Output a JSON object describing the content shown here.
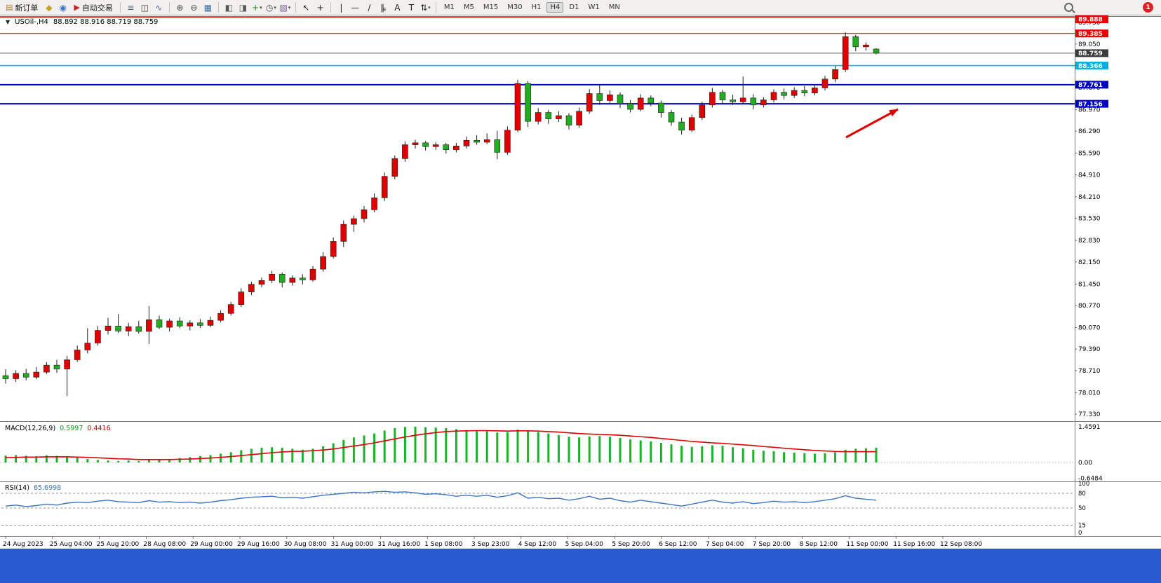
{
  "toolbar": {
    "timeframes": [
      "M1",
      "M5",
      "M15",
      "M30",
      "H1",
      "H4",
      "D1",
      "W1",
      "MN"
    ],
    "active_timeframe": "H4",
    "badge_count": "1",
    "items": [
      {
        "k": "btn",
        "n": "new-order-button",
        "g": "▤",
        "gc": "#b08030",
        "l": "新订单"
      },
      {
        "k": "ico",
        "n": "history-center-icon",
        "g": "◆",
        "gc": "#c8a020"
      },
      {
        "k": "ico",
        "n": "community-icon",
        "g": "◉",
        "gc": "#3c78c8"
      },
      {
        "k": "btn",
        "n": "auto-trading-button",
        "g": "▶",
        "gc": "#cc2222",
        "l": "自动交易"
      },
      {
        "k": "sep"
      },
      {
        "k": "ico",
        "n": "bar-chart-icon",
        "g": "≡",
        "gc": "#44619a"
      },
      {
        "k": "ico",
        "n": "candlestick-chart-icon",
        "g": "◫",
        "gc": "#444"
      },
      {
        "k": "ico",
        "n": "line-chart-icon",
        "g": "∿",
        "gc": "#44619a"
      },
      {
        "k": "sep"
      },
      {
        "k": "ico",
        "n": "zoom-in-icon",
        "g": "⊕",
        "gc": "#444"
      },
      {
        "k": "ico",
        "n": "zoom-out-icon",
        "g": "⊖",
        "gc": "#444"
      },
      {
        "k": "ico",
        "n": "tile-windows-icon",
        "g": "▦",
        "gc": "#3a6ea5"
      },
      {
        "k": "sep"
      },
      {
        "k": "ico",
        "n": "cascade-windows-icon",
        "g": "◧",
        "gc": "#555"
      },
      {
        "k": "ico",
        "n": "arrange-windows-icon",
        "g": "◨",
        "gc": "#555"
      },
      {
        "k": "ico",
        "n": "add-indicator-icon",
        "g": "+",
        "gc": "#1a8a1a",
        "caret": true
      },
      {
        "k": "ico",
        "n": "periods-icon",
        "g": "◷",
        "gc": "#444",
        "caret": true
      },
      {
        "k": "ico",
        "n": "templates-icon",
        "g": "▨",
        "gc": "#7a5a9a",
        "caret": true
      },
      {
        "k": "sep"
      },
      {
        "k": "ico",
        "n": "cursor-icon",
        "g": "↖",
        "gc": "#222"
      },
      {
        "k": "ico",
        "n": "crosshair-icon",
        "g": "+",
        "gc": "#222"
      },
      {
        "k": "sep"
      },
      {
        "k": "ico",
        "n": "vertical-line-icon",
        "g": "|",
        "gc": "#222"
      },
      {
        "k": "ico",
        "n": "horizontal-line-icon",
        "g": "—",
        "gc": "#222"
      },
      {
        "k": "ico",
        "n": "trendline-icon",
        "g": "/",
        "gc": "#222"
      },
      {
        "k": "ico",
        "n": "equidistant-channel-icon",
        "g": "∥",
        "gc": "#222",
        "sub": "E"
      },
      {
        "k": "ico",
        "n": "text-icon",
        "g": "A",
        "gc": "#222"
      },
      {
        "k": "ico",
        "n": "text-label-icon",
        "g": "T",
        "gc": "#222"
      },
      {
        "k": "ico",
        "n": "arrows-icon",
        "g": "⇅",
        "gc": "#222",
        "caret": true
      },
      {
        "k": "sep"
      },
      {
        "k": "tf"
      },
      {
        "k": "search",
        "n": "search-icon"
      },
      {
        "k": "badge",
        "n": "notification-badge"
      }
    ]
  },
  "chart": {
    "symbol_label": "USOil-,H4",
    "ohlc": "88.892 88.916 88.719 88.759",
    "colors": {
      "up": "#e00000",
      "down": "#22ac22",
      "wick": "#1c1c1c"
    },
    "price_axis_ticks": [
      "89.730",
      "89.050",
      "88.370",
      "87.670",
      "86.970",
      "86.290",
      "85.590",
      "84.910",
      "84.210",
      "83.530",
      "82.830",
      "82.150",
      "81.450",
      "80.770",
      "80.070",
      "79.390",
      "78.710",
      "78.010",
      "77.330"
    ],
    "badges": [
      {
        "label": "89.888",
        "color": "#ee0000"
      },
      {
        "label": "89.385",
        "color": "#ee0000"
      },
      {
        "label": "88.759",
        "color": "#3c3c3c"
      },
      {
        "label": "88.366",
        "color": "#00b0e0"
      },
      {
        "label": "87.761",
        "color": "#0000c8"
      },
      {
        "label": "87.156",
        "color": "#0000c8"
      }
    ],
    "levels": [
      {
        "price": 89.888,
        "color": "#ee0000",
        "w": 1.2
      },
      {
        "price": 89.385,
        "color": "#ee0000",
        "w": 1.2
      },
      {
        "price": 88.759,
        "color": "#606060",
        "w": 1
      },
      {
        "price": 88.366,
        "color": "#00c0f0",
        "w": 1.6
      },
      {
        "price": 87.761,
        "color": "#0000cc",
        "w": 2
      },
      {
        "price": 87.156,
        "color": "#0000cc",
        "w": 2
      }
    ],
    "time_axis": [
      "24 Aug 2023",
      "25 Aug 04:00",
      "25 Aug 20:00",
      "28 Aug 08:00",
      "29 Aug 00:00",
      "29 Aug 16:00",
      "30 Aug 08:00",
      "31 Aug 00:00",
      "31 Aug 16:00",
      "1 Sep 08:00",
      "3 Sep 23:00",
      "4 Sep 12:00",
      "5 Sep 04:00",
      "5 Sep 20:00",
      "6 Sep 12:00",
      "7 Sep 04:00",
      "7 Sep 20:00",
      "8 Sep 12:00",
      "11 Sep 00:00",
      "11 Sep 16:00",
      "12 Sep 08:00"
    ],
    "candles": [
      [
        78.55,
        78.75,
        78.3,
        78.45
      ],
      [
        78.45,
        78.72,
        78.35,
        78.62
      ],
      [
        78.62,
        78.76,
        78.4,
        78.5
      ],
      [
        78.5,
        78.82,
        78.44,
        78.66
      ],
      [
        78.66,
        78.98,
        78.6,
        78.88
      ],
      [
        78.88,
        79.05,
        78.64,
        78.76
      ],
      [
        78.76,
        79.18,
        77.9,
        79.05
      ],
      [
        79.05,
        79.5,
        78.98,
        79.36
      ],
      [
        79.36,
        80.05,
        79.25,
        79.58
      ],
      [
        79.58,
        80.12,
        79.5,
        79.98
      ],
      [
        79.98,
        80.38,
        79.85,
        80.12
      ],
      [
        80.12,
        80.5,
        79.9,
        79.96
      ],
      [
        79.96,
        80.22,
        79.8,
        80.1
      ],
      [
        80.1,
        80.28,
        79.88,
        79.95
      ],
      [
        79.95,
        80.75,
        79.55,
        80.32
      ],
      [
        80.32,
        80.45,
        80.02,
        80.08
      ],
      [
        80.08,
        80.35,
        79.95,
        80.28
      ],
      [
        80.28,
        80.4,
        80.05,
        80.12
      ],
      [
        80.12,
        80.3,
        79.98,
        80.22
      ],
      [
        80.22,
        80.34,
        80.06,
        80.14
      ],
      [
        80.14,
        80.42,
        80.08,
        80.3
      ],
      [
        80.3,
        80.62,
        80.24,
        80.52
      ],
      [
        80.52,
        80.88,
        80.45,
        80.8
      ],
      [
        80.8,
        81.32,
        80.72,
        81.2
      ],
      [
        81.2,
        81.52,
        81.1,
        81.44
      ],
      [
        81.44,
        81.66,
        81.35,
        81.56
      ],
      [
        81.56,
        81.86,
        81.48,
        81.76
      ],
      [
        81.76,
        81.82,
        81.34,
        81.5
      ],
      [
        81.5,
        81.72,
        81.4,
        81.64
      ],
      [
        81.64,
        81.76,
        81.44,
        81.58
      ],
      [
        81.58,
        82.02,
        81.52,
        81.92
      ],
      [
        81.92,
        82.46,
        81.84,
        82.32
      ],
      [
        82.32,
        82.92,
        82.26,
        82.8
      ],
      [
        82.8,
        83.46,
        82.62,
        83.34
      ],
      [
        83.34,
        83.62,
        83.1,
        83.52
      ],
      [
        83.52,
        83.92,
        83.4,
        83.8
      ],
      [
        83.8,
        84.32,
        83.72,
        84.18
      ],
      [
        84.18,
        84.98,
        84.08,
        84.86
      ],
      [
        84.86,
        85.52,
        84.76,
        85.42
      ],
      [
        85.42,
        85.96,
        85.32,
        85.86
      ],
      [
        85.86,
        86.02,
        85.74,
        85.92
      ],
      [
        85.92,
        85.98,
        85.68,
        85.8
      ],
      [
        85.8,
        85.94,
        85.7,
        85.86
      ],
      [
        85.86,
        85.92,
        85.58,
        85.7
      ],
      [
        85.7,
        85.92,
        85.62,
        85.82
      ],
      [
        85.82,
        86.12,
        85.74,
        86.0
      ],
      [
        86.0,
        86.16,
        85.86,
        85.94
      ],
      [
        85.94,
        86.22,
        85.88,
        86.02
      ],
      [
        86.02,
        86.3,
        85.4,
        85.62
      ],
      [
        85.62,
        86.44,
        85.54,
        86.32
      ],
      [
        86.32,
        87.92,
        86.26,
        87.8
      ],
      [
        87.8,
        87.88,
        86.42,
        86.6
      ],
      [
        86.6,
        87.02,
        86.5,
        86.88
      ],
      [
        86.88,
        86.96,
        86.52,
        86.68
      ],
      [
        86.68,
        86.92,
        86.58,
        86.78
      ],
      [
        86.78,
        86.86,
        86.34,
        86.48
      ],
      [
        86.48,
        87.04,
        86.4,
        86.92
      ],
      [
        86.92,
        87.62,
        86.84,
        87.48
      ],
      [
        87.48,
        87.78,
        87.12,
        87.26
      ],
      [
        87.26,
        87.58,
        87.18,
        87.44
      ],
      [
        87.44,
        87.52,
        87.02,
        87.16
      ],
      [
        87.16,
        87.28,
        86.88,
        86.98
      ],
      [
        86.98,
        87.46,
        86.92,
        87.34
      ],
      [
        87.34,
        87.42,
        87.08,
        87.18
      ],
      [
        87.18,
        87.26,
        86.72,
        86.88
      ],
      [
        86.88,
        86.96,
        86.46,
        86.58
      ],
      [
        86.58,
        86.72,
        86.18,
        86.32
      ],
      [
        86.32,
        86.82,
        86.26,
        86.72
      ],
      [
        86.72,
        87.22,
        86.64,
        87.12
      ],
      [
        87.12,
        87.66,
        87.04,
        87.52
      ],
      [
        87.52,
        87.6,
        87.16,
        87.28
      ],
      [
        87.28,
        87.44,
        87.12,
        87.22
      ],
      [
        87.22,
        88.02,
        87.14,
        87.34
      ],
      [
        87.34,
        87.46,
        86.98,
        87.12
      ],
      [
        87.12,
        87.36,
        87.04,
        87.28
      ],
      [
        87.28,
        87.62,
        87.2,
        87.52
      ],
      [
        87.52,
        87.64,
        87.3,
        87.42
      ],
      [
        87.42,
        87.68,
        87.34,
        87.58
      ],
      [
        87.58,
        87.72,
        87.4,
        87.5
      ],
      [
        87.5,
        87.74,
        87.42,
        87.66
      ],
      [
        87.66,
        88.04,
        87.58,
        87.94
      ],
      [
        87.94,
        88.36,
        87.84,
        88.24
      ],
      [
        88.24,
        89.42,
        88.16,
        89.28
      ],
      [
        89.28,
        89.34,
        88.82,
        88.96
      ],
      [
        88.96,
        89.1,
        88.84,
        89.02
      ],
      [
        88.89,
        88.92,
        88.72,
        88.76
      ]
    ]
  },
  "macd": {
    "label": "MACD(12,26,9)",
    "value_main": "0.5997",
    "value_signal": "0.4416",
    "axis": [
      "1.4591",
      "0.00",
      "-0.6484"
    ],
    "hist_color": "#18b428",
    "signal_color": "#e00000",
    "hist": [
      0.28,
      0.3,
      0.27,
      0.25,
      0.29,
      0.27,
      0.24,
      0.2,
      0.14,
      0.1,
      0.08,
      0.06,
      0.08,
      0.06,
      0.12,
      0.1,
      0.14,
      0.18,
      0.22,
      0.26,
      0.3,
      0.36,
      0.42,
      0.5,
      0.56,
      0.6,
      0.62,
      0.6,
      0.56,
      0.52,
      0.56,
      0.66,
      0.78,
      0.92,
      1.02,
      1.1,
      1.18,
      1.3,
      1.4,
      1.45,
      1.46,
      1.44,
      1.42,
      1.4,
      1.36,
      1.32,
      1.3,
      1.28,
      1.22,
      1.24,
      1.34,
      1.3,
      1.24,
      1.18,
      1.12,
      1.05,
      1.02,
      1.06,
      1.08,
      1.05,
      1.0,
      0.94,
      0.9,
      0.86,
      0.8,
      0.74,
      0.68,
      0.64,
      0.66,
      0.7,
      0.68,
      0.62,
      0.58,
      0.52,
      0.48,
      0.46,
      0.42,
      0.4,
      0.38,
      0.36,
      0.38,
      0.42,
      0.52,
      0.56,
      0.58,
      0.6
    ],
    "signal": [
      0.2,
      0.21,
      0.22,
      0.22,
      0.23,
      0.23,
      0.23,
      0.22,
      0.21,
      0.19,
      0.17,
      0.15,
      0.14,
      0.12,
      0.12,
      0.12,
      0.12,
      0.13,
      0.14,
      0.16,
      0.18,
      0.21,
      0.24,
      0.28,
      0.32,
      0.36,
      0.4,
      0.43,
      0.45,
      0.46,
      0.48,
      0.51,
      0.55,
      0.61,
      0.67,
      0.73,
      0.8,
      0.88,
      0.96,
      1.04,
      1.11,
      1.17,
      1.22,
      1.26,
      1.28,
      1.29,
      1.3,
      1.3,
      1.29,
      1.28,
      1.29,
      1.29,
      1.28,
      1.26,
      1.24,
      1.21,
      1.18,
      1.16,
      1.14,
      1.13,
      1.11,
      1.08,
      1.05,
      1.02,
      0.98,
      0.94,
      0.9,
      0.86,
      0.83,
      0.8,
      0.78,
      0.75,
      0.72,
      0.69,
      0.65,
      0.62,
      0.58,
      0.55,
      0.52,
      0.49,
      0.47,
      0.45,
      0.44,
      0.44,
      0.44,
      0.44
    ]
  },
  "rsi": {
    "label": "RSI(14)",
    "value": "65.6998",
    "line_color": "#3b74c4",
    "axis_labels": [
      "100",
      "80",
      "50",
      "15",
      "0"
    ],
    "level_lines": [
      80,
      50,
      15
    ],
    "series": [
      54,
      56,
      53,
      55,
      58,
      56,
      60,
      62,
      61,
      64,
      66,
      63,
      62,
      61,
      65,
      62,
      63,
      61,
      62,
      60,
      62,
      65,
      67,
      70,
      72,
      73,
      74,
      71,
      72,
      70,
      73,
      76,
      78,
      80,
      82,
      81,
      83,
      84,
      82,
      83,
      81,
      78,
      79,
      77,
      74,
      76,
      74,
      76,
      72,
      75,
      81,
      70,
      72,
      69,
      70,
      66,
      69,
      74,
      68,
      70,
      65,
      62,
      66,
      63,
      60,
      57,
      54,
      58,
      62,
      66,
      62,
      60,
      63,
      59,
      61,
      64,
      62,
      63,
      61,
      63,
      66,
      69,
      75,
      70,
      68,
      66
    ]
  },
  "arrow": {
    "color": "#e00000"
  }
}
